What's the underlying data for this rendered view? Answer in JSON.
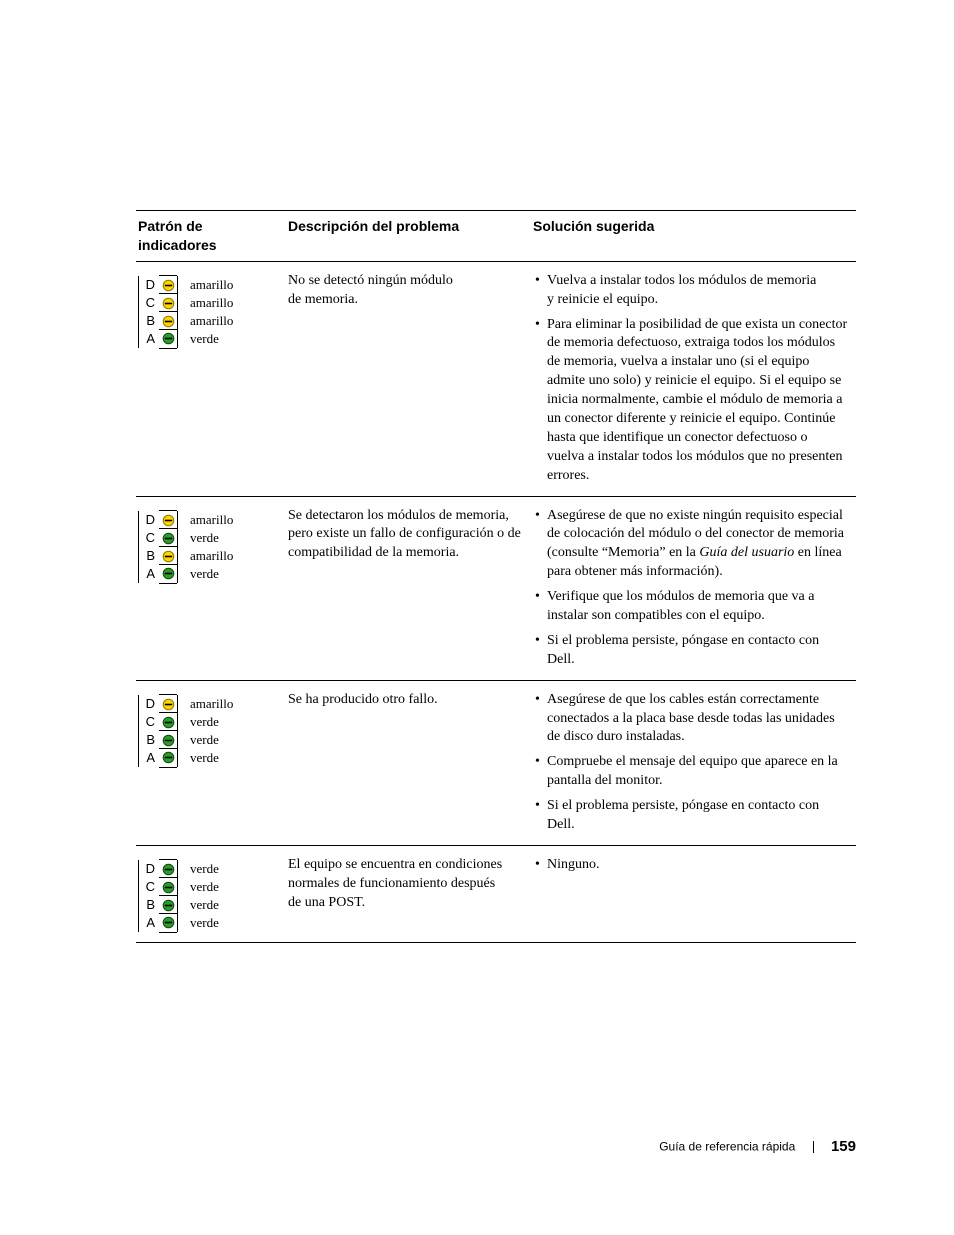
{
  "colors": {
    "yellow_fill": "#ffd400",
    "yellow_stroke": "#8a7a00",
    "green_fill": "#2e9a2e",
    "green_stroke": "#0c4d0c",
    "border": "#000000",
    "background": "#ffffff"
  },
  "led_letters": [
    "D",
    "C",
    "B",
    "A"
  ],
  "color_words": {
    "yellow": "amarillo",
    "green": "verde"
  },
  "headers": {
    "pattern": "Patrón de indicadores",
    "problem": "Descripción del problema",
    "solution": "Solución sugerida"
  },
  "rows": [
    {
      "leds": [
        "yellow",
        "yellow",
        "yellow",
        "green"
      ],
      "problem": "No se detectó ningún módulo de memoria.",
      "solutions": [
        "Vuelva a instalar todos los módulos de memoria y reinicie el equipo.",
        "Para eliminar la posibilidad de que exista un conector de memoria defectuoso, extraiga todos los módulos de memoria, vuelva a instalar uno (si el equipo admite uno solo) y reinicie el equipo. Si el equipo se inicia normalmente, cambie el módulo de memoria a un conector diferente y reinicie el equipo. Continúe hasta que identifique un conector defectuoso o vuelva a instalar todos los módulos que no presenten errores."
      ]
    },
    {
      "leds": [
        "yellow",
        "green",
        "yellow",
        "green"
      ],
      "problem": "Se detectaron los módulos de memoria, pero existe un fallo de configuración o de compatibilidad de la memoria.",
      "solutions": [
        "Asegúrese de que no existe ningún requisito especial de colocación del módulo o del conector de memoria (consulte “Memoria” en la <i>Guía del usuario</i> en línea para obtener más información).",
        "Verifique que los módulos de memoria que va a instalar son compatibles con el equipo.",
        "Si el problema persiste, póngase en contacto con Dell."
      ]
    },
    {
      "leds": [
        "yellow",
        "green",
        "green",
        "green"
      ],
      "problem": "Se ha producido otro fallo.",
      "solutions": [
        "Asegúrese de que los cables están correctamente conectados a la placa base desde todas las unidades de disco duro instaladas.",
        "Compruebe el mensaje del equipo que aparece en la pantalla del monitor.",
        "Si el problema persiste, póngase en contacto con Dell."
      ]
    },
    {
      "leds": [
        "green",
        "green",
        "green",
        "green"
      ],
      "problem": "El equipo se encuentra en condiciones normales de funcionamiento después de una POST.",
      "solutions": [
        "Ninguno."
      ]
    }
  ],
  "footer": {
    "text": "Guía de referencia rápida",
    "page": "159"
  }
}
